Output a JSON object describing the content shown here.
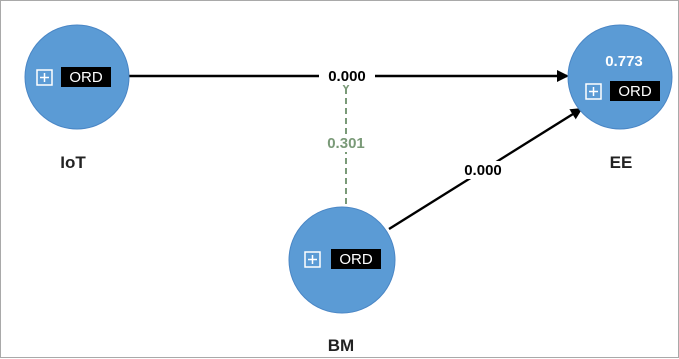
{
  "colors": {
    "node_fill": "#5b9bd5",
    "node_stroke": "#4a86c5",
    "path_significant": "#000000",
    "path_moderation": "#7a9a78",
    "tag_background": "#000000",
    "tag_text": "#ffffff"
  },
  "nodes": [
    {
      "id": "IoT",
      "label": "IoT",
      "tag": "ORD",
      "r_squared": ""
    },
    {
      "id": "EE",
      "label": "EE",
      "tag": "ORD",
      "r_squared": "0.773"
    },
    {
      "id": "BM",
      "label": "BM",
      "tag": "ORD",
      "r_squared": ""
    }
  ],
  "paths": [
    {
      "id": "iot-ee",
      "from": "IoT",
      "to": "EE",
      "coefficient": "0.000",
      "style": "solid"
    },
    {
      "id": "bm-ee",
      "from": "BM",
      "to": "EE",
      "coefficient": "0.000",
      "style": "solid"
    },
    {
      "id": "bm-moderation",
      "from": "BM",
      "to": "iot-ee",
      "coefficient": "0.301",
      "style": "dashed"
    }
  ]
}
